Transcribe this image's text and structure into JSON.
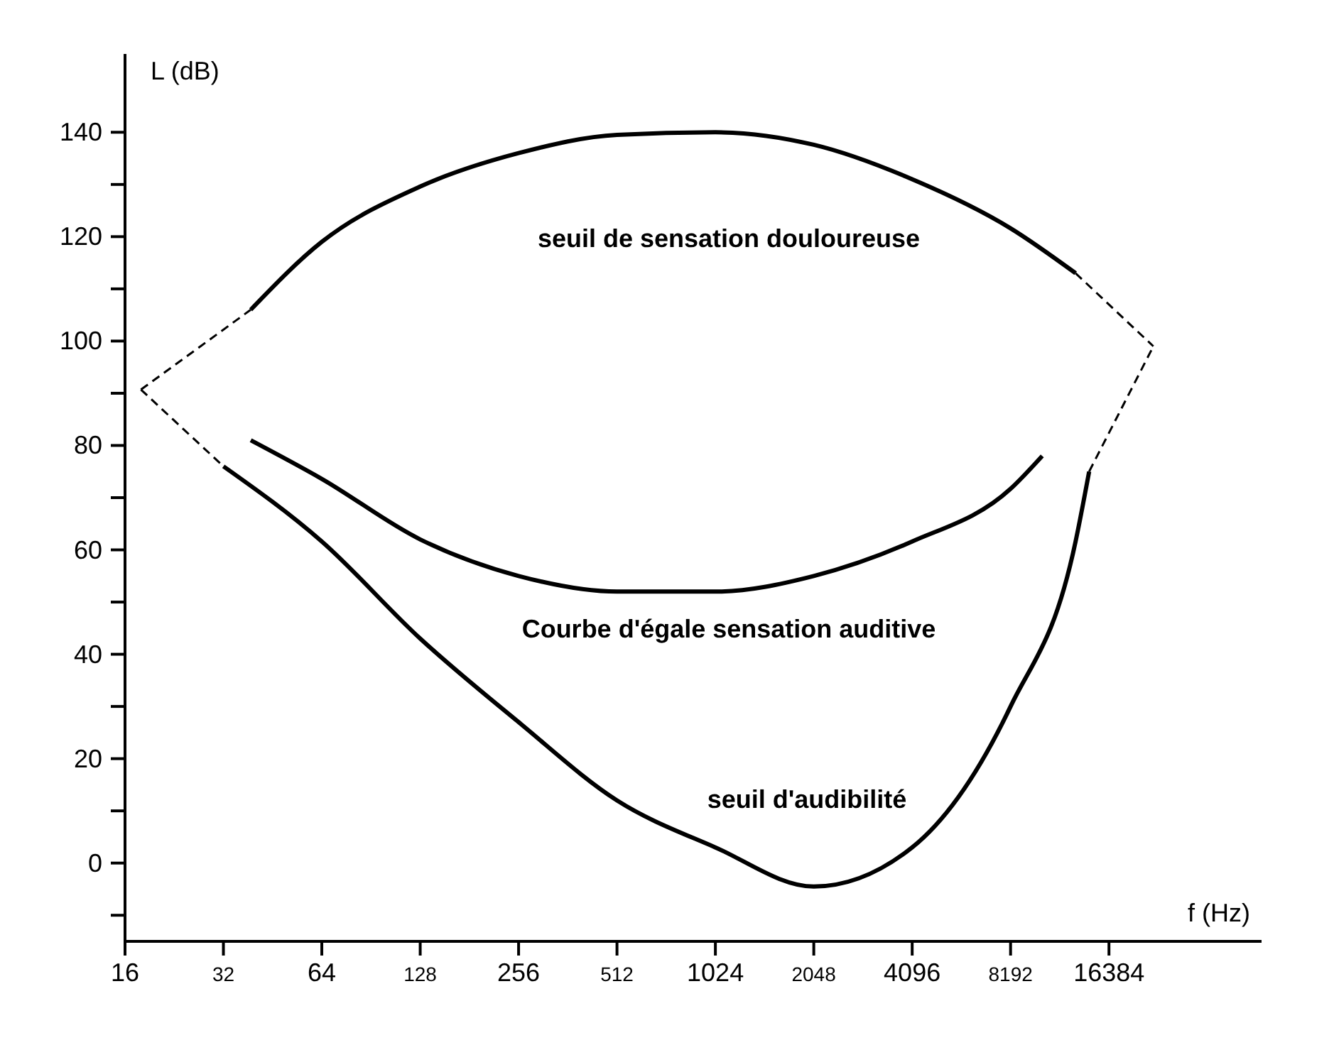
{
  "chart_data": {
    "type": "line",
    "xlabel": "f (Hz)",
    "ylabel": "L (dB)",
    "log": "x",
    "xlim": [
      16,
      48000
    ],
    "ylim": [
      -15,
      155
    ],
    "xticks": [
      16,
      32,
      64,
      128,
      256,
      512,
      1024,
      2048,
      4096,
      8192,
      16384
    ],
    "yticks": [
      {
        "value": -10,
        "label": null
      },
      0,
      {
        "value": 10,
        "label": null
      },
      20,
      {
        "value": 30,
        "label": null
      },
      40,
      {
        "value": 50,
        "label": null
      },
      60,
      {
        "value": 70,
        "label": null
      },
      80,
      {
        "value": 90,
        "label": null
      },
      100,
      {
        "value": 110,
        "label": null
      },
      120,
      {
        "value": 130,
        "label": null
      },
      140
    ],
    "marker": "none",
    "series": [
      {
        "color": "#000000",
        "line_style": "solid",
        "x": [
          38.8,
          64,
          128,
          256,
          512,
          1024,
          2048,
          4096,
          8192,
          12950
        ],
        "values": [
          106,
          119,
          129.6,
          136,
          139.5,
          140,
          137.6,
          131,
          121.6,
          113
        ]
      },
      {
        "color": "#000000",
        "line_style": "solid",
        "x": [
          32,
          64,
          128,
          256,
          512,
          1024,
          2048,
          4096,
          8192,
          12950,
          14250
        ],
        "values": [
          76,
          61.6,
          43,
          27,
          12,
          3,
          -4.5,
          3,
          30,
          61.6,
          75
        ]
      },
      {
        "color": "#000000",
        "line_style": "solid",
        "x": [
          38.8,
          64,
          128,
          256,
          512,
          1024,
          2048,
          4096,
          8192,
          10240
        ],
        "values": [
          81,
          73.6,
          62,
          55,
          52,
          52,
          55,
          61.6,
          71.7,
          78
        ]
      },
      {
        "color": "#000000",
        "line_style": "dashed",
        "x": [
          17.9,
          38.8
        ],
        "values": [
          90.7,
          106
        ]
      },
      {
        "color": "#000000",
        "line_style": "dashed",
        "x": [
          17.9,
          32
        ],
        "values": [
          90.7,
          76
        ]
      },
      {
        "color": "#000000",
        "line_style": "dashed",
        "x": [
          12950,
          22400
        ],
        "values": [
          113,
          99
        ]
      },
      {
        "color": "#000000",
        "line_style": "dashed",
        "x": [
          14250,
          22400
        ],
        "values": [
          75,
          99
        ]
      }
    ],
    "annotations": [
      "seuil de sensation douloureuse",
      "Courbe d'égale sensation auditive",
      "seuil d'audibilité"
    ]
  }
}
